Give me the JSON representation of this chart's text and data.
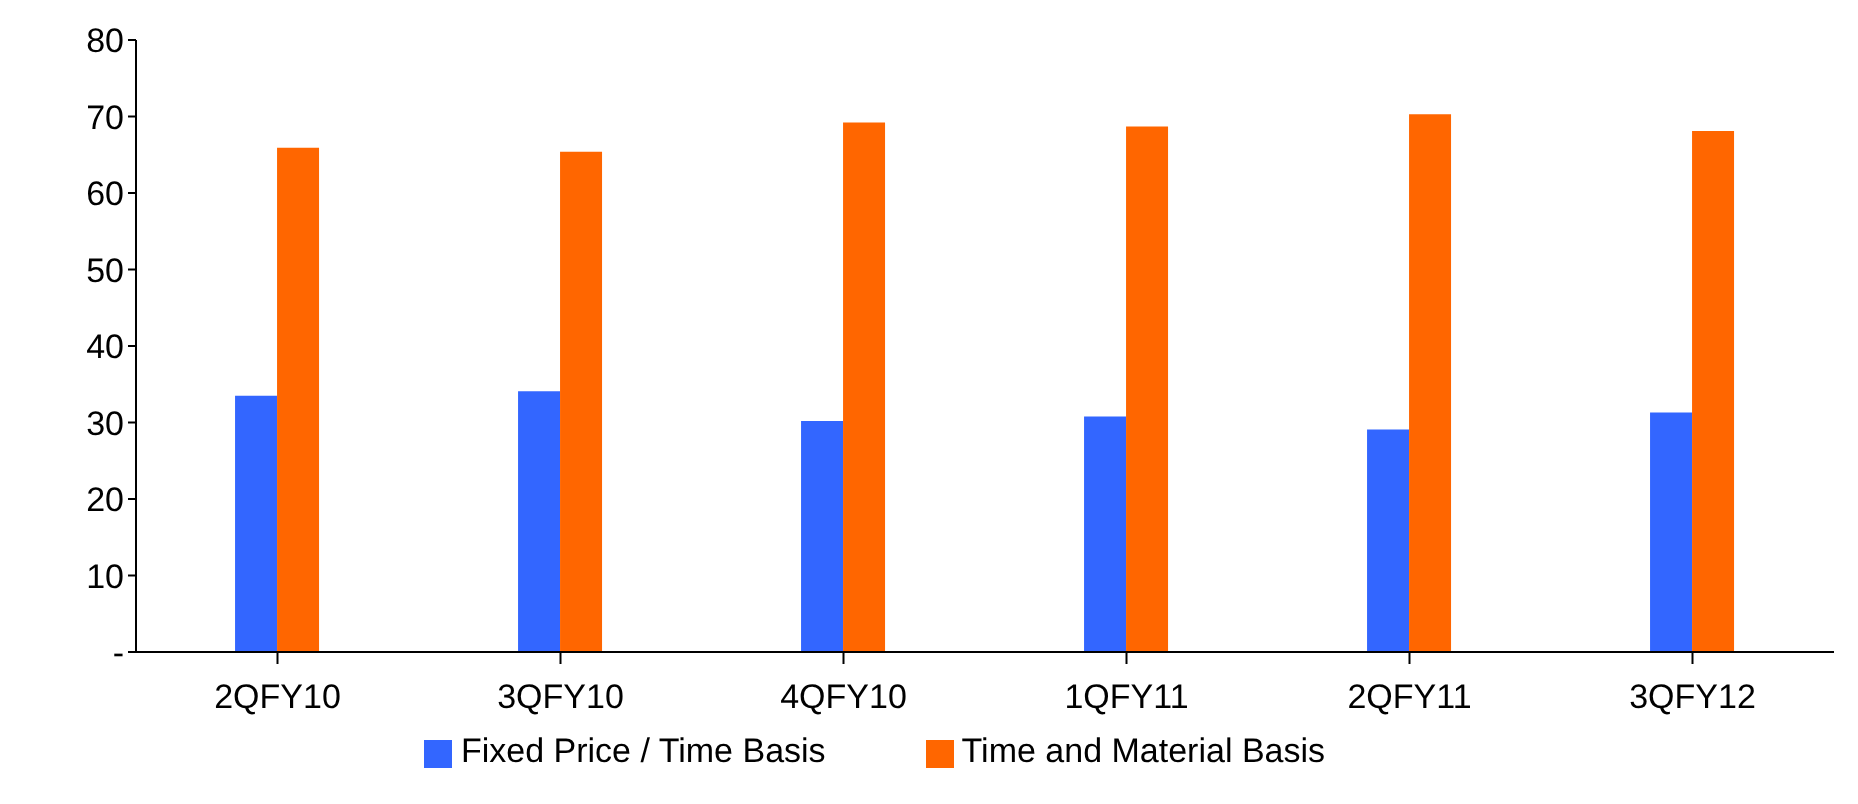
{
  "chart_data": {
    "type": "bar",
    "categories": [
      "2QFY10",
      "3QFY10",
      "4QFY10",
      "1QFY11",
      "2QFY11",
      "3QFY12"
    ],
    "series": [
      {
        "name": "Fixed Price / Time Basis",
        "color": "#3366ff",
        "values": [
          33.5,
          34.1,
          30.2,
          30.8,
          29.1,
          31.3
        ]
      },
      {
        "name": "Time and Material Basis",
        "color": "#ff6600",
        "values": [
          65.9,
          65.4,
          69.2,
          68.7,
          70.3,
          68.1
        ]
      }
    ],
    "ylim": [
      0,
      80
    ],
    "yticks": [
      {
        "value": 0,
        "label": "-"
      },
      10,
      20,
      30,
      40,
      50,
      60,
      70,
      80
    ],
    "grid": false,
    "legend": "bottom"
  }
}
